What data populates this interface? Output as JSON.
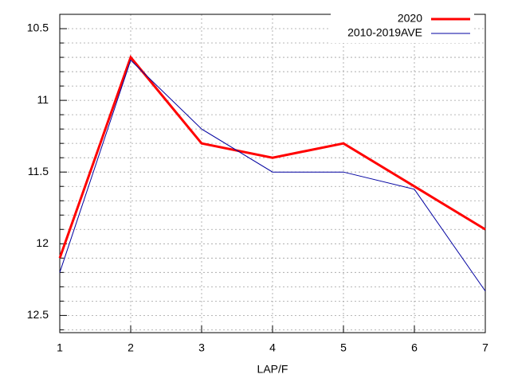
{
  "chart_data": {
    "type": "line",
    "xlabel": "LAP/F",
    "x": [
      1,
      2,
      3,
      4,
      5,
      6,
      7
    ],
    "series": [
      {
        "name": "2020",
        "color": "#ff0000",
        "width": 3,
        "values": [
          12.1,
          10.7,
          11.3,
          11.4,
          11.3,
          11.6,
          11.9
        ]
      },
      {
        "name": "2010-2019AVE",
        "color": "#0000a0",
        "width": 1,
        "values": [
          12.2,
          10.72,
          11.2,
          11.5,
          11.5,
          11.62,
          12.33
        ]
      }
    ],
    "xlim": [
      1,
      7
    ],
    "xticks": [
      1,
      2,
      3,
      4,
      5,
      6,
      7
    ],
    "ylim": [
      10.4,
      12.62
    ],
    "yticks": [
      10.5,
      11,
      11.5,
      12,
      12.5
    ],
    "yminorticks": [
      10.6,
      10.7,
      10.8,
      10.9,
      11.1,
      11.2,
      11.3,
      11.4,
      11.6,
      11.7,
      11.8,
      11.9,
      12.1,
      12.2,
      12.3,
      12.4,
      12.6
    ],
    "y_reversed": true,
    "grid": true,
    "legend": "top-right"
  }
}
